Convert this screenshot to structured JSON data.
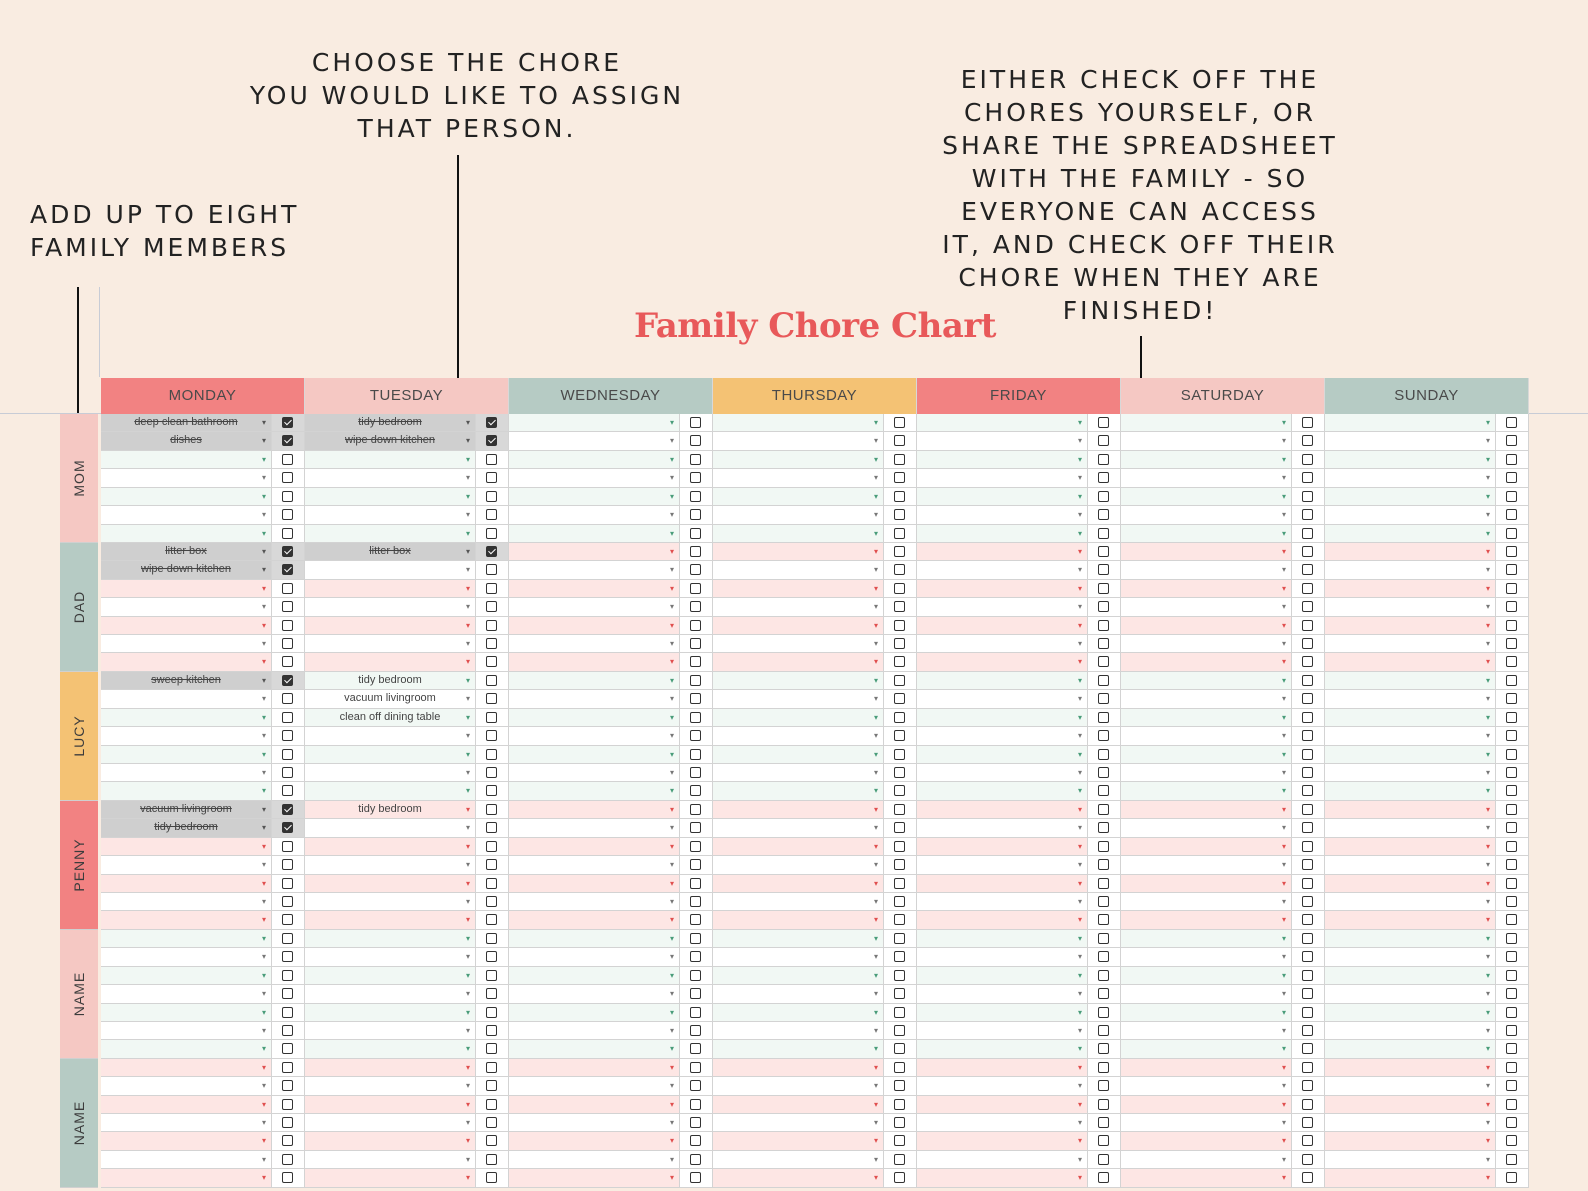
{
  "annotations": {
    "add_members": "ADD UP TO EIGHT\nFAMILY MEMBERS",
    "choose_chore": "CHOOSE THE CHORE\nYOU WOULD LIKE TO ASSIGN\nTHAT PERSON.",
    "check_off": "EITHER CHECK OFF THE\nCHORES YOURSELF, OR\nSHARE THE SPREADSHEET\nWITH THE FAMILY - SO\nEVERYONE CAN ACCESS\nIT, AND CHECK OFF THEIR\nCHORE WHEN THEY ARE\nFINISHED!"
  },
  "title": "Family Chore Chart",
  "days": [
    {
      "label": "MONDAY",
      "color": "#f28282"
    },
    {
      "label": "TUESDAY",
      "color": "#f5c8c3"
    },
    {
      "label": "WEDNESDAY",
      "color": "#b6cbc4"
    },
    {
      "label": "THURSDAY",
      "color": "#f4c274"
    },
    {
      "label": "FRIDAY",
      "color": "#f28282"
    },
    {
      "label": "SATURDAY",
      "color": "#f5c8c3"
    },
    {
      "label": "SUNDAY",
      "color": "#b6cbc4"
    }
  ],
  "people": [
    {
      "name": "MOM",
      "color": "#f5c8c3",
      "row_tint": "#f1f8f4",
      "dropdown_color": "#4a9d7a"
    },
    {
      "name": "DAD",
      "color": "#b6cbc4",
      "row_tint": "#fde6e4",
      "dropdown_color": "#e0504f"
    },
    {
      "name": "LUCY",
      "color": "#f4c274",
      "row_tint": "#f1f8f4",
      "dropdown_color": "#4a9d7a"
    },
    {
      "name": "PENNY",
      "color": "#f28282",
      "row_tint": "#fde6e4",
      "dropdown_color": "#e0504f"
    },
    {
      "name": "NAME",
      "color": "#f5c8c3",
      "row_tint": "#f1f8f4",
      "dropdown_color": "#4a9d7a"
    },
    {
      "name": "NAME",
      "color": "#b6cbc4",
      "row_tint": "#fde6e4",
      "dropdown_color": "#e0504f"
    }
  ],
  "rows_per_person": 7,
  "chores": [
    {
      "person": 0,
      "row": 0,
      "day": 0,
      "text": "deep clean bathroom",
      "done": true
    },
    {
      "person": 0,
      "row": 0,
      "day": 1,
      "text": "tidy bedroom",
      "done": true
    },
    {
      "person": 0,
      "row": 1,
      "day": 0,
      "text": "dishes",
      "done": true
    },
    {
      "person": 0,
      "row": 1,
      "day": 1,
      "text": "wipe down kitchen",
      "done": true
    },
    {
      "person": 1,
      "row": 0,
      "day": 0,
      "text": "litter box",
      "done": true
    },
    {
      "person": 1,
      "row": 0,
      "day": 1,
      "text": "litter box",
      "done": true
    },
    {
      "person": 1,
      "row": 1,
      "day": 0,
      "text": "wipe down kitchen",
      "done": true
    },
    {
      "person": 2,
      "row": 0,
      "day": 0,
      "text": "sweep kitchen",
      "done": true
    },
    {
      "person": 2,
      "row": 0,
      "day": 1,
      "text": "tidy bedroom",
      "done": false
    },
    {
      "person": 2,
      "row": 1,
      "day": 1,
      "text": "vacuum livingroom",
      "done": false
    },
    {
      "person": 2,
      "row": 2,
      "day": 1,
      "text": "clean off dining table",
      "done": false
    },
    {
      "person": 3,
      "row": 0,
      "day": 0,
      "text": "vacuum livingroom",
      "done": true
    },
    {
      "person": 3,
      "row": 0,
      "day": 1,
      "text": "tidy bedroom",
      "done": false
    },
    {
      "person": 3,
      "row": 1,
      "day": 0,
      "text": "tidy bedroom",
      "done": true
    }
  ],
  "icons": {
    "dropdown": "dropdown-arrow-icon",
    "checkbox": "checkbox-icon"
  }
}
